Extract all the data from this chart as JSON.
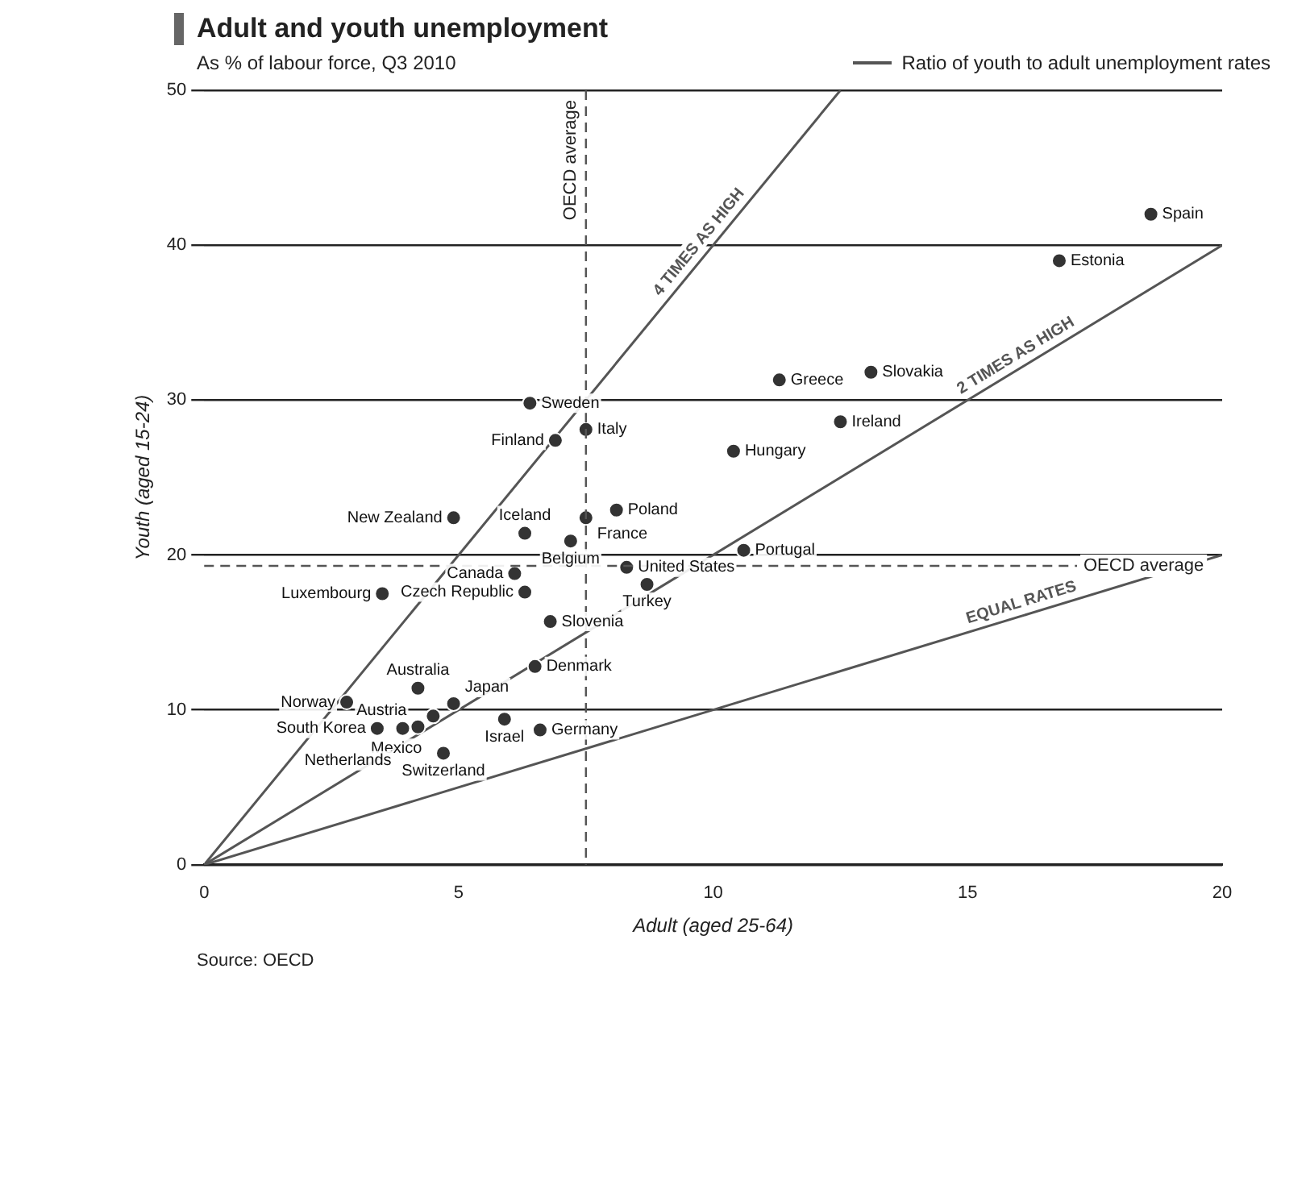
{
  "chart_data": {
    "type": "scatter",
    "title": "Adult and youth unemployment",
    "subtitle": "As % of labour force, Q3 2010",
    "xlabel": "Adult (aged 25-64)",
    "ylabel": "Youth (aged 15-24)",
    "legend_title": "Ratio of youth to adult unemployment rates",
    "legend": "top right",
    "xlim": [
      0,
      20
    ],
    "xticks": [
      0,
      5,
      10,
      15,
      20
    ],
    "ylim": [
      0,
      50
    ],
    "yticks": [
      0,
      10,
      20,
      30,
      40,
      50
    ],
    "grid": "y",
    "series": [
      {
        "marker": "circle",
        "color": "#333333",
        "x": [
          18.6,
          16.8,
          13.1,
          11.3,
          12.5,
          10.4,
          10.6,
          6.4,
          7.5,
          6.9,
          7.5,
          8.1,
          7.2,
          6.3,
          4.9,
          8.3,
          6.1,
          6.3,
          3.5,
          6.8,
          8.7,
          4.2,
          4.5,
          4.9,
          2.8,
          6.5,
          5.9,
          6.6,
          4.7,
          3.4,
          3.9,
          4.2
        ],
        "values": [
          42.0,
          39.0,
          31.8,
          31.3,
          28.6,
          26.7,
          20.3,
          29.8,
          28.1,
          27.4,
          22.4,
          22.9,
          20.9,
          21.4,
          22.4,
          19.2,
          18.8,
          17.6,
          17.5,
          15.7,
          18.1,
          11.4,
          9.6,
          10.4,
          10.5,
          12.8,
          9.4,
          8.7,
          7.2,
          8.8,
          8.8,
          8.9
        ]
      },
      {
        "type": "line",
        "name": "4 TIMES AS HIGH",
        "color": "#555555",
        "line_style": "solid",
        "x": [
          0,
          12.5
        ],
        "values": [
          0,
          50
        ]
      },
      {
        "type": "line",
        "name": "2 TIMES AS HIGH",
        "color": "#555555",
        "line_style": "solid",
        "x": [
          0,
          20
        ],
        "values": [
          0,
          40
        ]
      },
      {
        "type": "line",
        "name": "EQUAL RATES",
        "color": "#555555",
        "line_style": "solid",
        "x": [
          0,
          20
        ],
        "values": [
          0,
          20
        ]
      }
    ],
    "ref_lines": [
      {
        "axis": "x",
        "value": 7.5,
        "label": "OECD average",
        "color": "#555555",
        "line_style": "dashed"
      },
      {
        "axis": "y",
        "value": 19.3,
        "label": "OECD average",
        "color": "#555555",
        "line_style": "dashed"
      }
    ],
    "annotations": [
      {
        "text": "Spain",
        "x": 18.6,
        "y": 42.0
      },
      {
        "text": "Estonia",
        "x": 16.8,
        "y": 39.0
      },
      {
        "text": "Slovakia",
        "x": 13.1,
        "y": 31.8
      },
      {
        "text": "Greece",
        "x": 11.3,
        "y": 31.3
      },
      {
        "text": "Ireland",
        "x": 12.5,
        "y": 28.6
      },
      {
        "text": "Hungary",
        "x": 10.4,
        "y": 26.7
      },
      {
        "text": "Portugal",
        "x": 10.6,
        "y": 20.3
      },
      {
        "text": "Sweden",
        "x": 6.4,
        "y": 29.8
      },
      {
        "text": "Italy",
        "x": 7.5,
        "y": 28.1
      },
      {
        "text": "Finland",
        "x": 6.9,
        "y": 27.4
      },
      {
        "text": "France",
        "x": 7.5,
        "y": 22.4
      },
      {
        "text": "Poland",
        "x": 8.1,
        "y": 22.9
      },
      {
        "text": "Belgium",
        "x": 7.2,
        "y": 20.9
      },
      {
        "text": "Iceland",
        "x": 6.3,
        "y": 21.4
      },
      {
        "text": "New Zealand",
        "x": 4.9,
        "y": 22.4
      },
      {
        "text": "United States",
        "x": 8.3,
        "y": 19.2
      },
      {
        "text": "Canada",
        "x": 6.1,
        "y": 18.8
      },
      {
        "text": "Czech Republic",
        "x": 6.3,
        "y": 17.6
      },
      {
        "text": "Luxembourg",
        "x": 3.5,
        "y": 17.5
      },
      {
        "text": "Slovenia",
        "x": 6.8,
        "y": 15.7
      },
      {
        "text": "Turkey",
        "x": 8.7,
        "y": 18.1
      },
      {
        "text": "Australia",
        "x": 4.2,
        "y": 11.4
      },
      {
        "text": "Mexico",
        "x": 4.5,
        "y": 9.6
      },
      {
        "text": "Japan",
        "x": 4.9,
        "y": 10.4
      },
      {
        "text": "Norway",
        "x": 2.8,
        "y": 10.5
      },
      {
        "text": "Denmark",
        "x": 6.5,
        "y": 12.8
      },
      {
        "text": "Israel",
        "x": 5.9,
        "y": 9.4
      },
      {
        "text": "Germany",
        "x": 6.6,
        "y": 8.7
      },
      {
        "text": "Switzerland",
        "x": 4.7,
        "y": 7.2
      },
      {
        "text": "South Korea",
        "x": 3.4,
        "y": 8.8
      },
      {
        "text": "Netherlands",
        "x": 3.9,
        "y": 8.8
      },
      {
        "text": "Austria",
        "x": 4.2,
        "y": 8.9
      },
      "Source: OECD"
    ]
  }
}
